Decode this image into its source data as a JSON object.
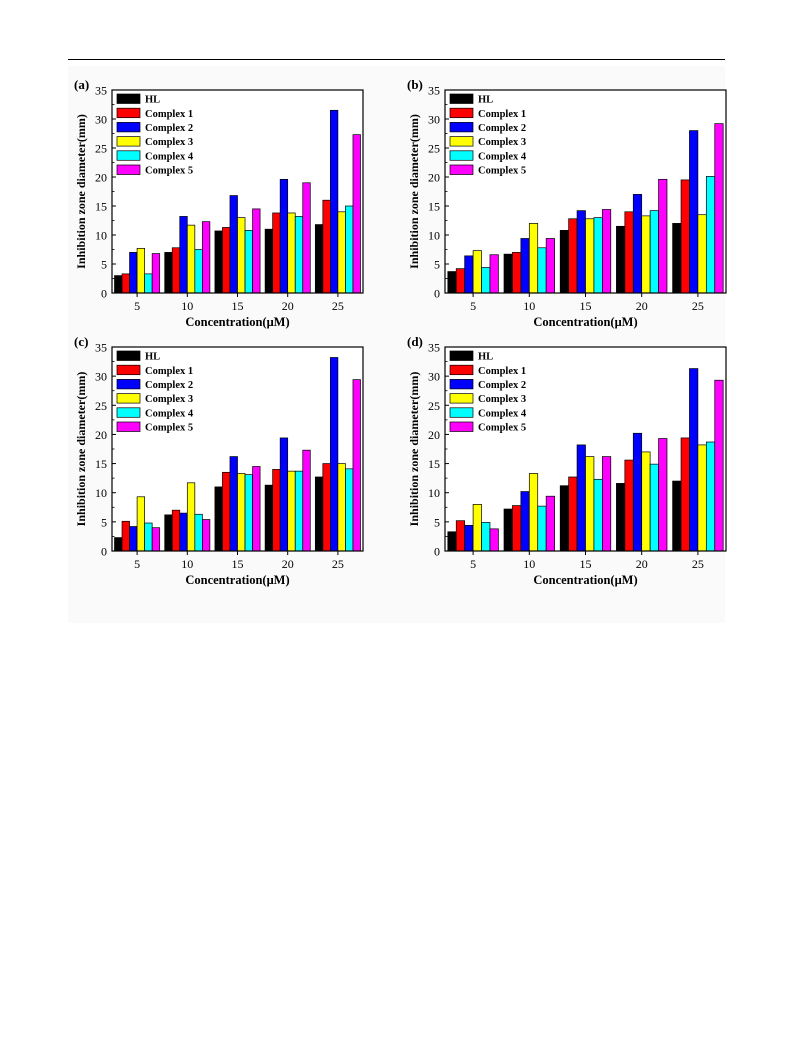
{
  "colors": {
    "HL": "#000000",
    "Complex 1": "#ff0000",
    "Complex 2": "#0000ff",
    "Complex 3": "#ffff00",
    "Complex 4": "#00ffff",
    "Complex 5": "#ff00ff"
  },
  "chart_data": [
    {
      "panel": "(a)",
      "type": "bar",
      "categories": [
        "5",
        "10",
        "15",
        "20",
        "25"
      ],
      "xlabel": "Concentration(μM)",
      "ylabel": "Inhibition zone diameter(mm)",
      "ylim": [
        0,
        35
      ],
      "yticks": [
        "0",
        "5",
        "10",
        "15",
        "20",
        "25",
        "30",
        "35"
      ],
      "legend_position": "top-left",
      "series": [
        {
          "name": "HL",
          "values": [
            3.0,
            7.0,
            10.7,
            11.0,
            11.8
          ]
        },
        {
          "name": "Complex 1",
          "values": [
            3.3,
            7.8,
            11.3,
            13.8,
            16.0
          ]
        },
        {
          "name": "Complex 2",
          "values": [
            7.0,
            13.2,
            16.8,
            19.6,
            31.5
          ]
        },
        {
          "name": "Complex 3",
          "values": [
            7.7,
            11.7,
            13.0,
            13.8,
            14.0
          ]
        },
        {
          "name": "Complex 4",
          "values": [
            3.3,
            7.5,
            10.8,
            13.2,
            15.0
          ]
        },
        {
          "name": "Complex 5",
          "values": [
            6.8,
            12.3,
            14.5,
            19.0,
            27.3
          ]
        }
      ]
    },
    {
      "panel": "(b)",
      "type": "bar",
      "categories": [
        "5",
        "10",
        "15",
        "20",
        "25"
      ],
      "xlabel": "Concentration(μM)",
      "ylabel": "Inhibition zone diameter(mm)",
      "ylim": [
        0,
        35
      ],
      "yticks": [
        "0",
        "5",
        "10",
        "15",
        "20",
        "25",
        "30",
        "35"
      ],
      "legend_position": "top-left",
      "series": [
        {
          "name": "HL",
          "values": [
            3.7,
            6.7,
            10.8,
            11.5,
            12.0
          ]
        },
        {
          "name": "Complex 1",
          "values": [
            4.2,
            7.0,
            12.8,
            14.0,
            19.5
          ]
        },
        {
          "name": "Complex 2",
          "values": [
            6.4,
            9.4,
            14.2,
            17.0,
            28.0
          ]
        },
        {
          "name": "Complex 3",
          "values": [
            7.3,
            12.0,
            12.8,
            13.3,
            13.5
          ]
        },
        {
          "name": "Complex 4",
          "values": [
            4.4,
            7.8,
            13.0,
            14.2,
            20.1
          ]
        },
        {
          "name": "Complex 5",
          "values": [
            6.6,
            9.4,
            14.4,
            19.6,
            29.2
          ]
        }
      ]
    },
    {
      "panel": "(c)",
      "type": "bar",
      "categories": [
        "5",
        "10",
        "15",
        "20",
        "25"
      ],
      "xlabel": "Concentration(μM)",
      "ylabel": "Inhibition zone diameter(mm)",
      "ylim": [
        0,
        35
      ],
      "yticks": [
        "0",
        "5",
        "10",
        "15",
        "20",
        "25",
        "30",
        "35"
      ],
      "legend_position": "top-left",
      "series": [
        {
          "name": "HL",
          "values": [
            2.3,
            6.2,
            11.0,
            11.3,
            12.7
          ]
        },
        {
          "name": "Complex 1",
          "values": [
            5.1,
            7.0,
            13.5,
            14.0,
            15.0
          ]
        },
        {
          "name": "Complex 2",
          "values": [
            4.2,
            6.5,
            16.2,
            19.4,
            33.2
          ]
        },
        {
          "name": "Complex 3",
          "values": [
            9.3,
            11.7,
            13.3,
            13.7,
            15.0
          ]
        },
        {
          "name": "Complex 4",
          "values": [
            4.8,
            6.3,
            13.1,
            13.7,
            14.1
          ]
        },
        {
          "name": "Complex 5",
          "values": [
            4.0,
            5.4,
            14.5,
            17.3,
            29.4
          ]
        }
      ]
    },
    {
      "panel": "(d)",
      "type": "bar",
      "categories": [
        "5",
        "10",
        "15",
        "20",
        "25"
      ],
      "xlabel": "Concentration(μM)",
      "ylabel": "Inhibition zone diameter(mm)",
      "ylim": [
        0,
        35
      ],
      "yticks": [
        "0",
        "5",
        "10",
        "15",
        "20",
        "25",
        "30",
        "35"
      ],
      "legend_position": "top-left",
      "series": [
        {
          "name": "HL",
          "values": [
            3.3,
            7.2,
            11.2,
            11.6,
            12.0
          ]
        },
        {
          "name": "Complex 1",
          "values": [
            5.2,
            7.8,
            12.7,
            15.6,
            19.4
          ]
        },
        {
          "name": "Complex 2",
          "values": [
            4.4,
            10.2,
            18.2,
            20.2,
            31.3
          ]
        },
        {
          "name": "Complex 3",
          "values": [
            8.0,
            13.3,
            16.2,
            17.0,
            18.2
          ]
        },
        {
          "name": "Complex 4",
          "values": [
            4.9,
            7.7,
            12.3,
            14.9,
            18.7
          ]
        },
        {
          "name": "Complex 5",
          "values": [
            3.8,
            9.4,
            16.2,
            19.3,
            29.3
          ]
        }
      ]
    }
  ]
}
